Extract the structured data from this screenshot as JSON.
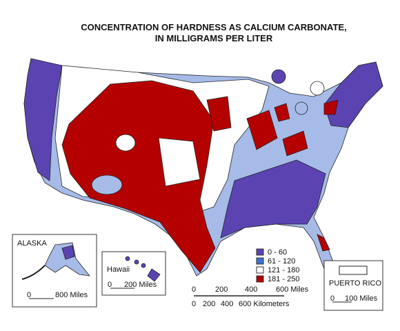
{
  "title": {
    "line1": "CONCENTRATION OF HARDNESS AS CALCIUM CARBONATE,",
    "line2": "IN MILLIGRAMS PER LITER"
  },
  "legend": {
    "entries": [
      {
        "label": "0 - 60",
        "color": "#5b44b2"
      },
      {
        "label": "61 - 120",
        "color": "#3d72cf"
      },
      {
        "label": "121 - 180",
        "color": "#ffffff"
      },
      {
        "label": "181 - 250",
        "color": "#b50000"
      }
    ]
  },
  "insets": {
    "alaska": {
      "label": "ALASKA",
      "scale": [
        "0",
        "800 Miles"
      ]
    },
    "hawaii": {
      "label": "Hawaii",
      "scale": [
        "0",
        "200 Miles"
      ]
    },
    "puerto_rico": {
      "label": "PUERTO RICO",
      "scale": [
        "0",
        "100 Miles"
      ]
    }
  },
  "scale_bar": {
    "miles": [
      "0",
      "200",
      "400",
      "600 Miles"
    ],
    "kilometers": [
      "0",
      "200",
      "400",
      "600 Kilometers"
    ]
  }
}
